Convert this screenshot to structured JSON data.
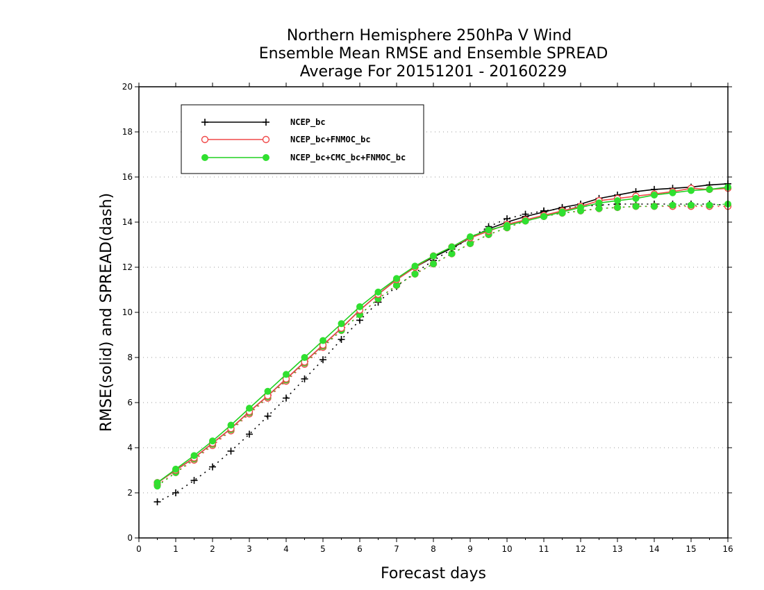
{
  "colors": {
    "s1": "#000000",
    "s2": "#f04848",
    "s3": "#20d020",
    "s3_marker": "#30e030",
    "grid": "#9a9a9a"
  },
  "chart_data": {
    "type": "line",
    "title": [
      "Northern Hemisphere 250hPa V Wind",
      "Ensemble Mean RMSE and Ensemble SPREAD",
      "Average For 20151201 - 20160229"
    ],
    "xlabel": "Forecast days",
    "ylabel": "RMSE(solid) and SPREAD(dash)",
    "xlim": [
      0,
      16
    ],
    "ylim": [
      0,
      20
    ],
    "xticks": [
      "0",
      "1",
      "2",
      "3",
      "4",
      "5",
      "6",
      "7",
      "8",
      "9",
      "10",
      "11",
      "12",
      "13",
      "14",
      "15",
      "16"
    ],
    "yticks": [
      "0",
      "2",
      "4",
      "6",
      "8",
      "10",
      "12",
      "14",
      "16",
      "18",
      "20"
    ],
    "grid": true,
    "legend_position": "top-left",
    "x": [
      0.5,
      1,
      1.5,
      2,
      2.5,
      3,
      3.5,
      4,
      4.5,
      5,
      5.5,
      6,
      6.5,
      7,
      7.5,
      8,
      8.5,
      9,
      9.5,
      10,
      10.5,
      11,
      11.5,
      12,
      12.5,
      13,
      13.5,
      14,
      14.5,
      15,
      15.5,
      16
    ],
    "series": [
      {
        "name": "NCEP_bc",
        "marker": "plus",
        "rmse": [
          2.45,
          3.0,
          3.55,
          4.2,
          4.85,
          5.6,
          6.3,
          7.05,
          7.8,
          8.55,
          9.3,
          10.1,
          10.8,
          11.45,
          12.0,
          12.45,
          12.85,
          13.3,
          13.7,
          14.0,
          14.25,
          14.45,
          14.65,
          14.8,
          15.05,
          15.2,
          15.35,
          15.45,
          15.5,
          15.55,
          15.65,
          15.7
        ],
        "spread": [
          1.6,
          2.0,
          2.55,
          3.15,
          3.85,
          4.6,
          5.4,
          6.2,
          7.05,
          7.9,
          8.8,
          9.65,
          10.45,
          11.15,
          11.75,
          12.3,
          12.8,
          13.3,
          13.8,
          14.15,
          14.35,
          14.5,
          14.6,
          14.7,
          14.75,
          14.8,
          14.8,
          14.8,
          14.8,
          14.8,
          14.8,
          14.75
        ]
      },
      {
        "name": "NCEP_bc+FNMOC_bc",
        "marker": "open-circle",
        "rmse": [
          2.45,
          3.0,
          3.55,
          4.2,
          4.85,
          5.6,
          6.3,
          7.05,
          7.8,
          8.55,
          9.3,
          10.1,
          10.8,
          11.45,
          12.0,
          12.5,
          12.9,
          13.3,
          13.6,
          13.9,
          14.1,
          14.3,
          14.5,
          14.7,
          14.95,
          15.05,
          15.15,
          15.25,
          15.35,
          15.5,
          15.45,
          15.5
        ],
        "spread": [
          2.35,
          2.9,
          3.45,
          4.1,
          4.75,
          5.5,
          6.2,
          6.95,
          7.7,
          8.45,
          9.2,
          9.9,
          10.6,
          11.2,
          11.7,
          12.15,
          12.6,
          13.05,
          13.45,
          13.75,
          14.05,
          14.25,
          14.4,
          14.5,
          14.6,
          14.65,
          14.7,
          14.7,
          14.7,
          14.7,
          14.7,
          14.7
        ]
      },
      {
        "name": "NCEP_bc+CMC_bc+FNMOC_bc",
        "marker": "filled-circle",
        "rmse": [
          2.45,
          3.05,
          3.65,
          4.3,
          5.0,
          5.75,
          6.5,
          7.25,
          8.0,
          8.75,
          9.5,
          10.25,
          10.9,
          11.5,
          12.05,
          12.5,
          12.9,
          13.35,
          13.65,
          13.85,
          14.05,
          14.25,
          14.45,
          14.65,
          14.85,
          14.95,
          15.05,
          15.2,
          15.3,
          15.4,
          15.45,
          15.55
        ],
        "spread": [
          2.3,
          2.9,
          3.5,
          4.15,
          4.8,
          5.55,
          6.25,
          7.0,
          7.75,
          8.5,
          9.2,
          9.9,
          10.6,
          11.2,
          11.7,
          12.15,
          12.6,
          13.05,
          13.45,
          13.75,
          14.05,
          14.25,
          14.4,
          14.5,
          14.6,
          14.65,
          14.7,
          14.7,
          14.75,
          14.75,
          14.75,
          14.8
        ]
      }
    ]
  }
}
